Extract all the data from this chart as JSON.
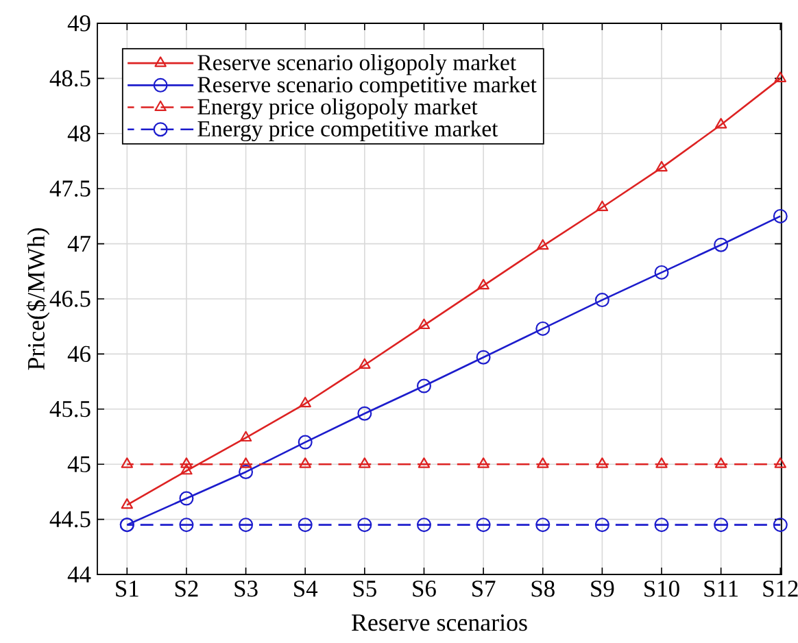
{
  "chart_data": {
    "type": "line",
    "xlabel": "Reserve scenarios",
    "ylabel": "Price($/MWh)",
    "categories": [
      "S1",
      "S2",
      "S3",
      "S4",
      "S5",
      "S6",
      "S7",
      "S8",
      "S9",
      "S10",
      "S11",
      "S12"
    ],
    "series": [
      {
        "name": "Reserve scenario oligopoly market",
        "color": "#dd2222",
        "marker": "triangle",
        "line_style": "solid",
        "values": [
          44.63,
          44.94,
          45.24,
          45.55,
          45.9,
          46.26,
          46.62,
          46.98,
          47.33,
          47.69,
          48.08,
          48.5
        ]
      },
      {
        "name": "Reserve scenario competitive market",
        "color": "#1c1ccc",
        "marker": "circle",
        "line_style": "solid",
        "values": [
          44.45,
          44.69,
          44.93,
          45.2,
          45.46,
          45.71,
          45.97,
          46.23,
          46.49,
          46.74,
          46.99,
          47.25
        ]
      },
      {
        "name": "Energy price oligopoly market",
        "color": "#dd2222",
        "marker": "triangle",
        "line_style": "dashed",
        "values": [
          45,
          45,
          45,
          45,
          45,
          45,
          45,
          45,
          45,
          45,
          45,
          45
        ]
      },
      {
        "name": "Energy price competitive market",
        "color": "#1c1ccc",
        "marker": "circle",
        "line_style": "dashed",
        "values": [
          44.45,
          44.45,
          44.45,
          44.45,
          44.45,
          44.45,
          44.45,
          44.45,
          44.45,
          44.45,
          44.45,
          44.45
        ]
      }
    ],
    "ylim": [
      44,
      49
    ],
    "yticks": [
      44,
      44.5,
      45,
      45.5,
      46,
      46.5,
      47,
      47.5,
      48,
      48.5,
      49
    ],
    "grid": true,
    "legend": "top left"
  }
}
